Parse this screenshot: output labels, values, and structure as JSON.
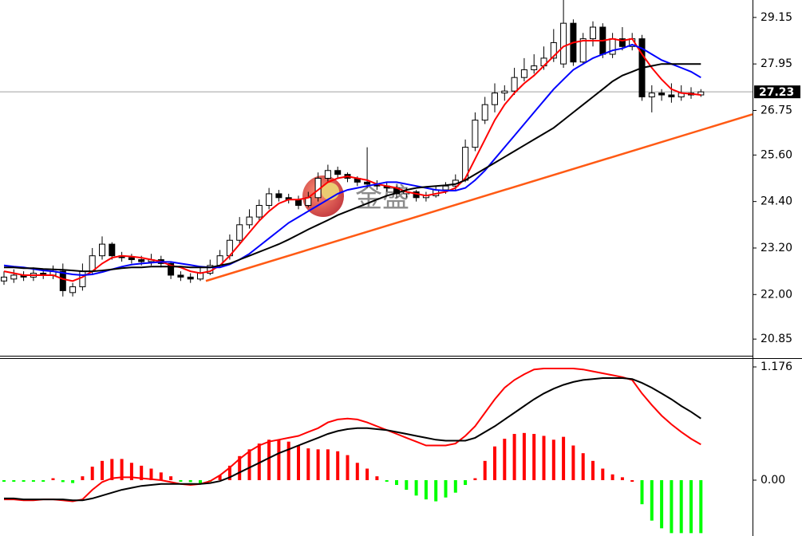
{
  "watermark": "金盛",
  "chart_data": [
    {
      "type": "candlestick",
      "open": [
        22.35,
        22.4,
        22.5,
        22.45,
        22.55,
        22.5,
        22.6,
        22.05,
        22.2,
        22.6,
        23.0,
        23.3,
        23.0,
        22.95,
        22.9,
        22.85,
        22.9,
        22.8,
        22.5,
        22.45,
        22.4,
        22.55,
        22.75,
        23.0,
        23.4,
        23.8,
        24.0,
        24.3,
        24.6,
        24.5,
        24.45,
        24.3,
        24.5,
        25.0,
        25.2,
        25.1,
        25.0,
        24.9,
        24.85,
        24.8,
        24.75,
        24.6,
        24.65,
        24.5,
        24.55,
        24.7,
        24.8,
        24.95,
        25.8,
        26.5,
        26.9,
        27.2,
        27.25,
        27.6,
        27.8,
        27.9,
        28.1,
        27.95,
        29.0,
        28.0,
        28.6,
        28.9,
        28.2,
        28.6,
        28.4,
        28.6,
        27.1,
        27.2,
        27.15,
        27.1,
        27.2,
        27.15
      ],
      "high": [
        22.6,
        22.65,
        22.6,
        22.7,
        22.65,
        22.75,
        22.8,
        22.3,
        22.8,
        23.2,
        23.5,
        23.35,
        23.1,
        23.05,
        23.0,
        23.05,
        23.0,
        22.85,
        22.6,
        22.55,
        22.7,
        22.9,
        23.15,
        23.55,
        24.0,
        24.2,
        24.45,
        24.75,
        24.7,
        24.6,
        24.55,
        24.65,
        25.15,
        25.35,
        25.3,
        25.15,
        25.05,
        25.8,
        24.95,
        24.9,
        24.8,
        24.75,
        24.7,
        24.65,
        24.8,
        24.9,
        25.1,
        26.0,
        26.7,
        27.1,
        27.45,
        27.4,
        27.85,
        28.1,
        28.2,
        28.4,
        28.85,
        29.6,
        29.1,
        28.75,
        29.05,
        29.0,
        28.75,
        28.9,
        28.75,
        28.7,
        27.4,
        27.3,
        27.45,
        27.4,
        27.35,
        27.3
      ],
      "low": [
        22.25,
        22.3,
        22.35,
        22.35,
        22.4,
        22.4,
        21.95,
        21.95,
        22.1,
        22.5,
        22.9,
        22.9,
        22.85,
        22.8,
        22.75,
        22.75,
        22.7,
        22.4,
        22.35,
        22.3,
        22.35,
        22.5,
        22.7,
        22.9,
        23.3,
        23.7,
        23.9,
        24.2,
        24.4,
        24.35,
        24.2,
        24.25,
        24.4,
        24.9,
        25.0,
        24.9,
        24.8,
        24.75,
        24.7,
        24.65,
        24.5,
        24.5,
        24.4,
        24.4,
        24.5,
        24.6,
        24.7,
        24.9,
        25.7,
        26.4,
        26.7,
        27.0,
        27.15,
        27.5,
        27.7,
        27.8,
        28.0,
        27.85,
        27.9,
        27.95,
        28.4,
        28.1,
        28.1,
        28.3,
        28.3,
        27.0,
        26.7,
        27.0,
        26.95,
        27.0,
        27.05,
        27.1
      ],
      "close": [
        22.45,
        22.5,
        22.45,
        22.55,
        22.5,
        22.6,
        22.1,
        22.2,
        22.6,
        23.0,
        23.3,
        23.0,
        22.95,
        22.9,
        22.85,
        22.9,
        22.8,
        22.5,
        22.45,
        22.4,
        22.55,
        22.75,
        23.0,
        23.4,
        23.8,
        24.0,
        24.3,
        24.6,
        24.5,
        24.45,
        24.3,
        24.5,
        25.0,
        25.2,
        25.1,
        25.0,
        24.9,
        24.85,
        24.8,
        24.75,
        24.6,
        24.65,
        24.5,
        24.55,
        24.7,
        24.8,
        24.95,
        25.8,
        26.5,
        26.9,
        27.2,
        27.25,
        27.6,
        27.8,
        27.9,
        28.1,
        28.5,
        29.0,
        28.0,
        28.6,
        28.9,
        28.2,
        28.6,
        28.4,
        28.6,
        27.1,
        27.2,
        27.15,
        27.1,
        27.2,
        27.15,
        27.23
      ],
      "up_color": "#ffffff",
      "down_color": "#000000",
      "overlays": [
        {
          "color": "#ff0000",
          "values": [
            22.6,
            22.55,
            22.5,
            22.5,
            22.5,
            22.5,
            22.4,
            22.35,
            22.45,
            22.6,
            22.8,
            22.95,
            23.0,
            22.98,
            22.95,
            22.9,
            22.85,
            22.75,
            22.7,
            22.6,
            22.55,
            22.6,
            22.75,
            23.0,
            23.3,
            23.6,
            23.9,
            24.15,
            24.35,
            24.45,
            24.45,
            24.5,
            24.7,
            24.9,
            25.0,
            25.05,
            25.0,
            24.95,
            24.85,
            24.8,
            24.75,
            24.65,
            24.6,
            24.55,
            24.6,
            24.65,
            24.75,
            25.0,
            25.5,
            26.0,
            26.5,
            26.9,
            27.2,
            27.45,
            27.65,
            27.9,
            28.15,
            28.4,
            28.5,
            28.55,
            28.55,
            28.55,
            28.6,
            28.55,
            28.6,
            28.2,
            27.85,
            27.55,
            27.3,
            27.2,
            27.18,
            27.15
          ]
        },
        {
          "color": "#0000ff",
          "values": [
            22.75,
            22.72,
            22.7,
            22.66,
            22.62,
            22.6,
            22.56,
            22.52,
            22.5,
            22.52,
            22.58,
            22.65,
            22.72,
            22.77,
            22.8,
            22.82,
            22.84,
            22.84,
            22.8,
            22.76,
            22.72,
            22.7,
            22.7,
            22.78,
            22.9,
            23.05,
            23.25,
            23.45,
            23.65,
            23.85,
            24.0,
            24.15,
            24.3,
            24.45,
            24.6,
            24.7,
            24.75,
            24.8,
            24.85,
            24.9,
            24.9,
            24.85,
            24.8,
            24.75,
            24.7,
            24.68,
            24.68,
            24.75,
            24.95,
            25.2,
            25.5,
            25.8,
            26.1,
            26.4,
            26.7,
            27.0,
            27.3,
            27.55,
            27.8,
            27.95,
            28.1,
            28.2,
            28.3,
            28.35,
            28.45,
            28.35,
            28.2,
            28.05,
            27.95,
            27.85,
            27.75,
            27.6
          ]
        },
        {
          "color": "#000000",
          "values": [
            22.7,
            22.7,
            22.68,
            22.68,
            22.66,
            22.65,
            22.64,
            22.62,
            22.6,
            22.6,
            22.62,
            22.65,
            22.68,
            22.7,
            22.7,
            22.72,
            22.72,
            22.72,
            22.72,
            22.7,
            22.7,
            22.7,
            22.75,
            22.8,
            22.9,
            23.0,
            23.1,
            23.2,
            23.3,
            23.42,
            23.55,
            23.68,
            23.8,
            23.92,
            24.05,
            24.15,
            24.25,
            24.35,
            24.45,
            24.55,
            24.62,
            24.7,
            24.75,
            24.78,
            24.8,
            24.82,
            24.85,
            24.95,
            25.1,
            25.25,
            25.4,
            25.55,
            25.7,
            25.85,
            26.0,
            26.15,
            26.3,
            26.5,
            26.7,
            26.9,
            27.1,
            27.3,
            27.5,
            27.65,
            27.75,
            27.85,
            27.9,
            27.95,
            27.95,
            27.95,
            27.95,
            27.95
          ]
        }
      ],
      "trendline": {
        "color": "#ff5a14",
        "values": [
          22.35,
          26.65
        ]
      },
      "last_price": 27.23,
      "ylim": [
        20.4,
        29.6
      ],
      "yticks": [
        29.15,
        27.95,
        26.75,
        {
          "value": 25.6,
          "label": "25.60"
        },
        {
          "value": 24.4,
          "label": "24.40"
        },
        {
          "value": 23.2,
          "label": "23.20"
        },
        {
          "value": 22,
          "label": "22.00"
        },
        20.85
      ]
    },
    {
      "type": "macd",
      "histogram": {
        "pos_color": "#ff0000",
        "neg_color": "#00ff00",
        "values": [
          -0.01,
          -0.01,
          -0.01,
          -0.01,
          -0.01,
          0.02,
          -0.02,
          -0.03,
          0.04,
          0.14,
          0.2,
          0.22,
          0.22,
          0.18,
          0.15,
          0.12,
          0.08,
          0.04,
          -0.01,
          -0.02,
          -0.03,
          -0.01,
          0.05,
          0.15,
          0.25,
          0.32,
          0.38,
          0.42,
          0.42,
          0.4,
          0.36,
          0.33,
          0.32,
          0.32,
          0.3,
          0.26,
          0.18,
          0.12,
          0.04,
          -0.01,
          -0.05,
          -0.1,
          -0.16,
          -0.2,
          -0.22,
          -0.18,
          -0.13,
          -0.05,
          0.02,
          0.2,
          0.35,
          0.43,
          0.48,
          0.49,
          0.48,
          0.46,
          0.42,
          0.45,
          0.36,
          0.28,
          0.2,
          0.12,
          0.06,
          0.03,
          0.0,
          -0.25,
          -0.42,
          -0.5,
          -0.55,
          -0.55,
          -0.55,
          -0.55
        ]
      },
      "lines": [
        {
          "color": "#ff0000",
          "values": [
            -0.2,
            -0.2,
            -0.21,
            -0.21,
            -0.2,
            -0.2,
            -0.21,
            -0.22,
            -0.2,
            -0.1,
            -0.02,
            0.02,
            0.03,
            0.03,
            0.02,
            0.01,
            0.0,
            -0.02,
            -0.04,
            -0.05,
            -0.04,
            -0.01,
            0.05,
            0.13,
            0.22,
            0.3,
            0.36,
            0.4,
            0.42,
            0.44,
            0.46,
            0.5,
            0.54,
            0.6,
            0.63,
            0.64,
            0.63,
            0.6,
            0.56,
            0.52,
            0.48,
            0.44,
            0.4,
            0.36,
            0.36,
            0.36,
            0.38,
            0.46,
            0.56,
            0.7,
            0.84,
            0.96,
            1.04,
            1.1,
            1.15,
            1.16,
            1.16,
            1.16,
            1.16,
            1.15,
            1.13,
            1.11,
            1.09,
            1.07,
            1.04,
            0.9,
            0.78,
            0.67,
            0.58,
            0.5,
            0.43,
            0.37
          ]
        },
        {
          "color": "#000000",
          "values": [
            -0.19,
            -0.19,
            -0.2,
            -0.2,
            -0.2,
            -0.2,
            -0.2,
            -0.21,
            -0.21,
            -0.19,
            -0.16,
            -0.13,
            -0.1,
            -0.08,
            -0.06,
            -0.05,
            -0.04,
            -0.04,
            -0.04,
            -0.04,
            -0.04,
            -0.03,
            -0.01,
            0.03,
            0.08,
            0.13,
            0.18,
            0.23,
            0.28,
            0.32,
            0.36,
            0.4,
            0.44,
            0.48,
            0.51,
            0.53,
            0.54,
            0.54,
            0.53,
            0.52,
            0.5,
            0.48,
            0.46,
            0.44,
            0.42,
            0.41,
            0.41,
            0.41,
            0.44,
            0.5,
            0.56,
            0.63,
            0.7,
            0.77,
            0.84,
            0.9,
            0.95,
            0.99,
            1.02,
            1.04,
            1.05,
            1.06,
            1.06,
            1.06,
            1.05,
            1.01,
            0.96,
            0.9,
            0.84,
            0.77,
            0.71,
            0.64
          ]
        }
      ],
      "ylim": [
        -0.58,
        1.259
      ],
      "yticks": [
        1.176,
        {
          "value": 0,
          "label": "0.00"
        }
      ]
    }
  ]
}
